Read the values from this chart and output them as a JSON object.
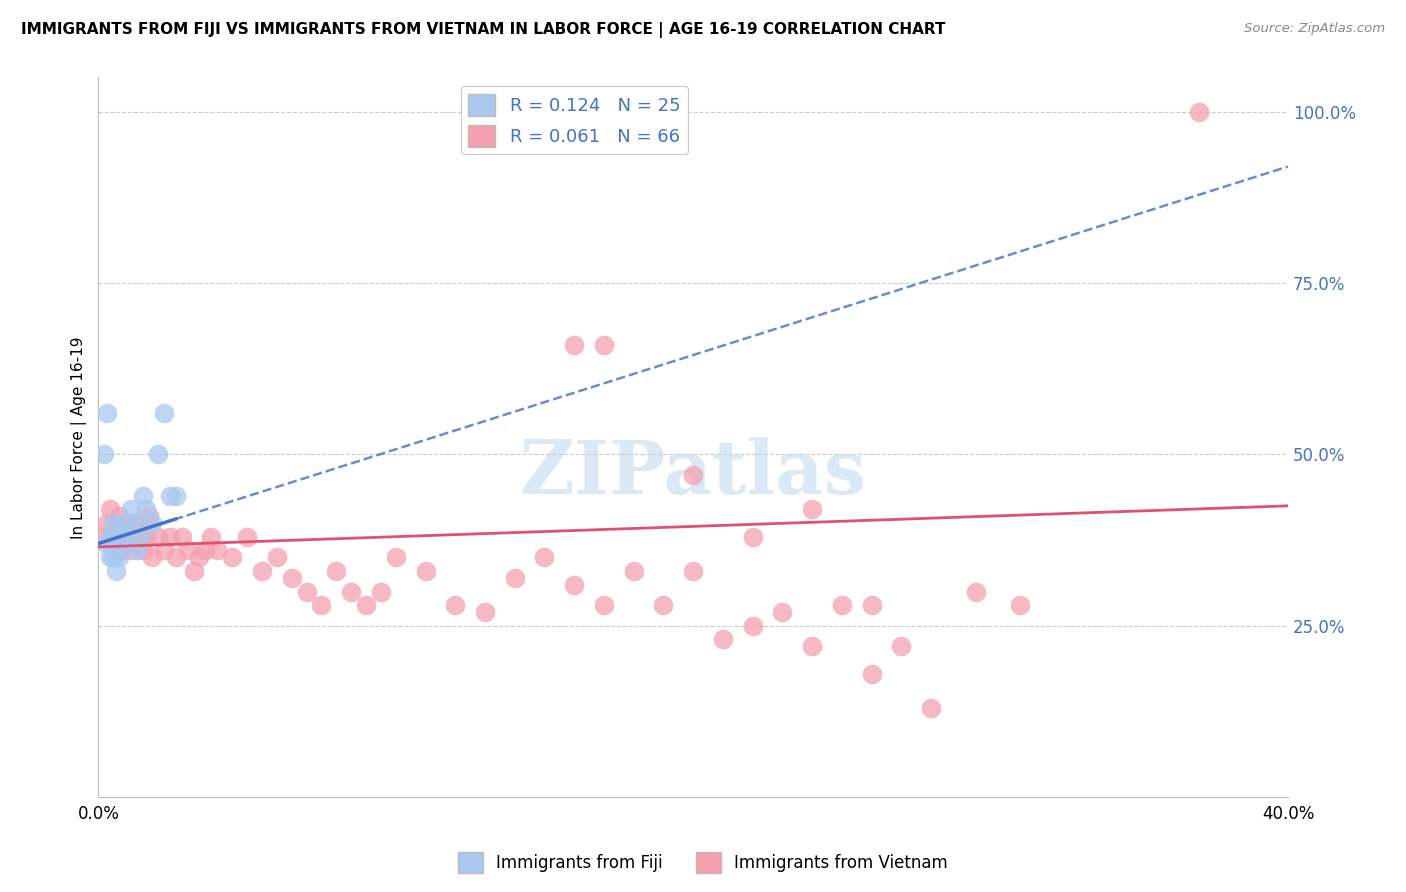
{
  "title": "IMMIGRANTS FROM FIJI VS IMMIGRANTS FROM VIETNAM IN LABOR FORCE | AGE 16-19 CORRELATION CHART",
  "source": "Source: ZipAtlas.com",
  "ylabel": "In Labor Force | Age 16-19",
  "xlim": [
    0.0,
    0.4
  ],
  "ylim": [
    0.0,
    1.05
  ],
  "xticks": [
    0.0,
    0.1,
    0.2,
    0.3,
    0.4
  ],
  "xticklabels": [
    "0.0%",
    "",
    "",
    "",
    "40.0%"
  ],
  "ytick_positions": [
    0.25,
    0.5,
    0.75,
    1.0
  ],
  "yticklabels_right": [
    "25.0%",
    "50.0%",
    "75.0%",
    "100.0%"
  ],
  "fiji_R": 0.124,
  "fiji_N": 25,
  "vietnam_R": 0.061,
  "vietnam_N": 66,
  "fiji_color": "#a8c8f0",
  "fiji_line_color": "#4472c4",
  "vietnam_color": "#f4a0b0",
  "vietnam_line_color": "#e05070",
  "fiji_scatter_x": [
    0.003,
    0.004,
    0.005,
    0.006,
    0.007,
    0.008,
    0.009,
    0.01,
    0.011,
    0.012,
    0.013,
    0.014,
    0.015,
    0.016,
    0.018,
    0.02,
    0.022,
    0.024,
    0.026,
    0.002,
    0.003,
    0.004,
    0.005,
    0.006,
    0.007
  ],
  "fiji_scatter_y": [
    0.37,
    0.38,
    0.4,
    0.38,
    0.39,
    0.37,
    0.4,
    0.38,
    0.42,
    0.4,
    0.36,
    0.38,
    0.44,
    0.42,
    0.4,
    0.5,
    0.56,
    0.44,
    0.44,
    0.5,
    0.56,
    0.35,
    0.35,
    0.33,
    0.35
  ],
  "vietnam_scatter_x": [
    0.002,
    0.003,
    0.004,
    0.005,
    0.006,
    0.007,
    0.008,
    0.009,
    0.01,
    0.011,
    0.012,
    0.013,
    0.015,
    0.016,
    0.017,
    0.018,
    0.02,
    0.022,
    0.024,
    0.026,
    0.028,
    0.03,
    0.032,
    0.034,
    0.036,
    0.038,
    0.04,
    0.045,
    0.05,
    0.055,
    0.06,
    0.065,
    0.07,
    0.075,
    0.08,
    0.085,
    0.09,
    0.095,
    0.1,
    0.11,
    0.12,
    0.13,
    0.14,
    0.15,
    0.16,
    0.17,
    0.18,
    0.19,
    0.2,
    0.21,
    0.22,
    0.23,
    0.24,
    0.25,
    0.26,
    0.27,
    0.28,
    0.295,
    0.31,
    0.16,
    0.17,
    0.2,
    0.22,
    0.24,
    0.26,
    0.37
  ],
  "vietnam_scatter_y": [
    0.38,
    0.4,
    0.42,
    0.38,
    0.39,
    0.41,
    0.36,
    0.38,
    0.4,
    0.36,
    0.38,
    0.4,
    0.36,
    0.38,
    0.41,
    0.35,
    0.38,
    0.36,
    0.38,
    0.35,
    0.38,
    0.36,
    0.33,
    0.35,
    0.36,
    0.38,
    0.36,
    0.35,
    0.38,
    0.33,
    0.35,
    0.32,
    0.3,
    0.28,
    0.33,
    0.3,
    0.28,
    0.3,
    0.35,
    0.33,
    0.28,
    0.27,
    0.32,
    0.35,
    0.31,
    0.28,
    0.33,
    0.28,
    0.33,
    0.23,
    0.25,
    0.27,
    0.22,
    0.28,
    0.18,
    0.22,
    0.13,
    0.3,
    0.28,
    0.66,
    0.66,
    0.47,
    0.38,
    0.42,
    0.28,
    1.0
  ],
  "watermark_text": "ZIPatlas",
  "legend_fiji_label": "R = 0.124   N = 25",
  "legend_vietnam_label": "R = 0.061   N = 66",
  "legend_bottom_fiji": "Immigrants from Fiji",
  "legend_bottom_vietnam": "Immigrants from Vietnam",
  "fiji_line_x": [
    0.0,
    0.4
  ],
  "fiji_line_y": [
    0.37,
    0.92
  ],
  "vietnam_line_x": [
    0.0,
    0.4
  ],
  "vietnam_line_y": [
    0.365,
    0.425
  ]
}
